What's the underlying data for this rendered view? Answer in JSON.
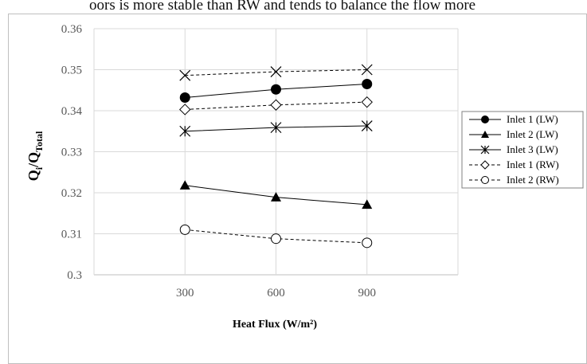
{
  "header_text": "oors is more stable than RW and tends to balance the flow more",
  "chart_data": {
    "type": "line",
    "title": "",
    "xlabel": "Heat Flux (W/m²)",
    "ylabel_main": "Q",
    "ylabel_sub1": "i",
    "ylabel_sep": "/Q",
    "ylabel_sub2": "Total",
    "categories": [
      "300",
      "600",
      "900"
    ],
    "ylim": [
      0.3,
      0.36
    ],
    "yticks": [
      "0.3",
      "0.31",
      "0.32",
      "0.33",
      "0.34",
      "0.35",
      "0.36"
    ],
    "grid": "vertical and horizontal",
    "legend_position": "right",
    "series": [
      {
        "name": "Inlet 1 (LW)",
        "values": [
          0.3432,
          0.3452,
          0.3465
        ],
        "marker": "filled-circle",
        "dashed": false
      },
      {
        "name": "Inlet 2 (LW)",
        "values": [
          0.3218,
          0.3189,
          0.3171
        ],
        "marker": "filled-triangle",
        "dashed": false
      },
      {
        "name": "Inlet 3 (LW)",
        "values": [
          0.335,
          0.3359,
          0.3363
        ],
        "marker": "asterisk",
        "dashed": false
      },
      {
        "name": "Inlet 1 (RW)",
        "values": [
          0.3403,
          0.3414,
          0.3421
        ],
        "marker": "open-diamond",
        "dashed": true
      },
      {
        "name": "Inlet 2 (RW)",
        "values": [
          0.311,
          0.3088,
          0.3078
        ],
        "marker": "open-circle",
        "dashed": true
      },
      {
        "name": "",
        "values": [
          0.3486,
          0.3495,
          0.35
        ],
        "marker": "x-cross",
        "dashed": true
      }
    ]
  }
}
